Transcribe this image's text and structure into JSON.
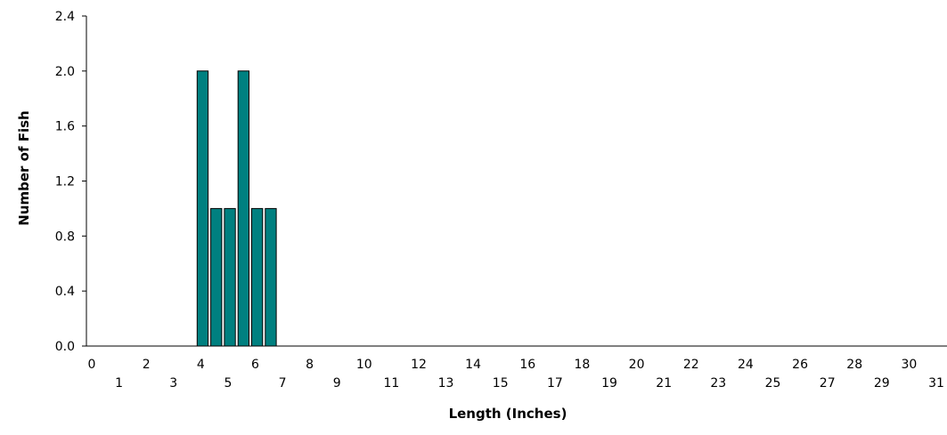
{
  "chart_data": {
    "type": "bar",
    "xlabel": "Length (Inches)",
    "ylabel": "Number of Fish",
    "x_tick_labels": [
      "0",
      "1",
      "2",
      "3",
      "4",
      "5",
      "6",
      "7",
      "8",
      "9",
      "10",
      "11",
      "12",
      "13",
      "14",
      "15",
      "16",
      "17",
      "18",
      "19",
      "20",
      "21",
      "22",
      "23",
      "24",
      "25",
      "26",
      "27",
      "28",
      "29",
      "30",
      "31"
    ],
    "y_tick_labels": [
      "0.0",
      "0.4",
      "0.8",
      "1.2",
      "1.6",
      "2.0",
      "2.4"
    ],
    "ylim": [
      0,
      2.4
    ],
    "xlim": [
      0,
      31
    ],
    "bar_width": 0.5,
    "bars": [
      {
        "x": 4.0,
        "value": 2
      },
      {
        "x": 4.5,
        "value": 1
      },
      {
        "x": 5.0,
        "value": 1
      },
      {
        "x": 5.5,
        "value": 2
      },
      {
        "x": 6.0,
        "value": 1
      },
      {
        "x": 6.5,
        "value": 1
      }
    ],
    "grid": false,
    "colors": {
      "bar_fill": "#008080",
      "bar_stroke": "#000000",
      "axis": "#000000"
    }
  }
}
